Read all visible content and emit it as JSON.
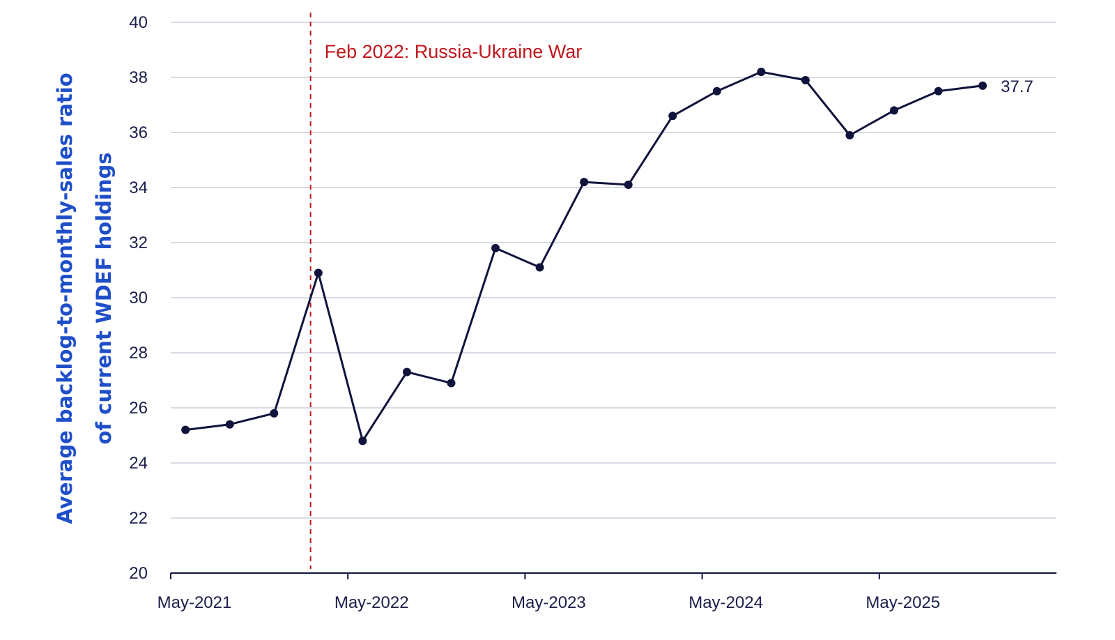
{
  "chart_data": {
    "type": "line",
    "ylabel_lines": [
      "Average backlog-to-monthly-sales ratio",
      "of current WDEF holdings"
    ],
    "ylim": [
      20,
      40
    ],
    "yticks": [
      20,
      22,
      24,
      26,
      28,
      30,
      32,
      34,
      36,
      38,
      40
    ],
    "x_tick_labels": [
      "May-2021",
      "May-2022",
      "May-2023",
      "May-2024",
      "May-2025"
    ],
    "x_range": [
      "2021-05",
      "2026-05"
    ],
    "grid": "horizontal",
    "series": [
      {
        "color": "#10143c",
        "points": [
          {
            "x": "2021-06",
            "y": 25.2
          },
          {
            "x": "2021-09",
            "y": 25.4
          },
          {
            "x": "2021-12",
            "y": 25.8
          },
          {
            "x": "2022-03",
            "y": 30.9
          },
          {
            "x": "2022-06",
            "y": 24.8
          },
          {
            "x": "2022-09",
            "y": 27.3
          },
          {
            "x": "2022-12",
            "y": 26.9
          },
          {
            "x": "2023-03",
            "y": 31.8
          },
          {
            "x": "2023-06",
            "y": 31.1
          },
          {
            "x": "2023-09",
            "y": 34.2
          },
          {
            "x": "2023-12",
            "y": 34.1
          },
          {
            "x": "2024-03",
            "y": 36.6
          },
          {
            "x": "2024-06",
            "y": 37.5
          },
          {
            "x": "2024-09",
            "y": 38.2
          },
          {
            "x": "2024-12",
            "y": 37.9
          },
          {
            "x": "2025-03",
            "y": 35.9
          },
          {
            "x": "2025-06",
            "y": 36.8
          },
          {
            "x": "2025-09",
            "y": 37.5
          },
          {
            "x": "2025-12",
            "y": 37.7
          }
        ]
      }
    ],
    "end_label": "37.7",
    "annotation": {
      "x": "2022-02",
      "text": "Feb 2022: Russia-Ukraine War",
      "color": "#c0171c",
      "style": "dashed-vertical"
    }
  }
}
